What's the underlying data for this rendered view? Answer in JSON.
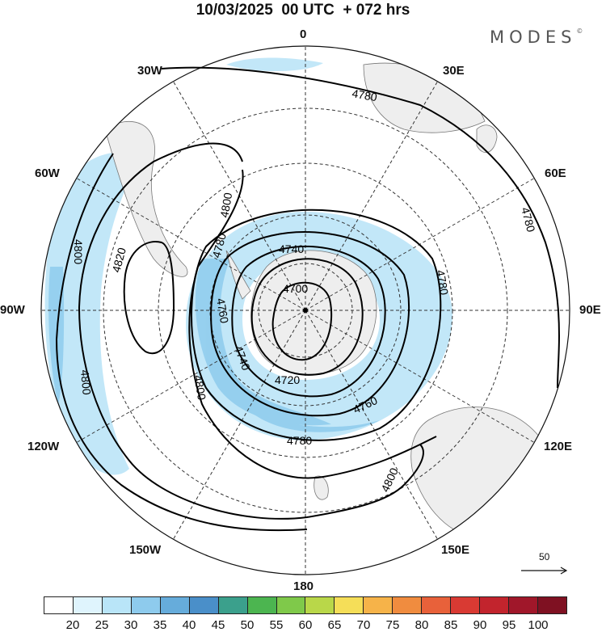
{
  "title": "10/03/2025  00 UTC  + 072 hrs",
  "brand": "MODES",
  "brand_mark": "©",
  "longitude_labels": [
    "0",
    "30E",
    "60E",
    "90E",
    "120E",
    "150E",
    "180",
    "150W",
    "120W",
    "90W",
    "60W",
    "30W"
  ],
  "contour_labels": [
    "4700",
    "4720",
    "4740",
    "4740",
    "4760",
    "4760",
    "4780",
    "4780",
    "4780",
    "4780",
    "4780",
    "4800",
    "4800",
    "4800",
    "4800",
    "4800",
    "4820"
  ],
  "reference_vector": {
    "label": "50"
  },
  "colorbar": {
    "labels": [
      "20",
      "25",
      "30",
      "35",
      "40",
      "45",
      "50",
      "55",
      "60",
      "65",
      "70",
      "75",
      "80",
      "85",
      "90",
      "95",
      "100"
    ],
    "colors": [
      "#ffffff",
      "#dff4fd",
      "#b9e5f8",
      "#8ecbed",
      "#66acdb",
      "#4a8fc9",
      "#3ba08c",
      "#4cb550",
      "#7fc94a",
      "#b9d749",
      "#f5de58",
      "#f6b349",
      "#f08c3f",
      "#e8613a",
      "#d93a33",
      "#c2242d",
      "#a0172a",
      "#7f1122"
    ]
  }
}
